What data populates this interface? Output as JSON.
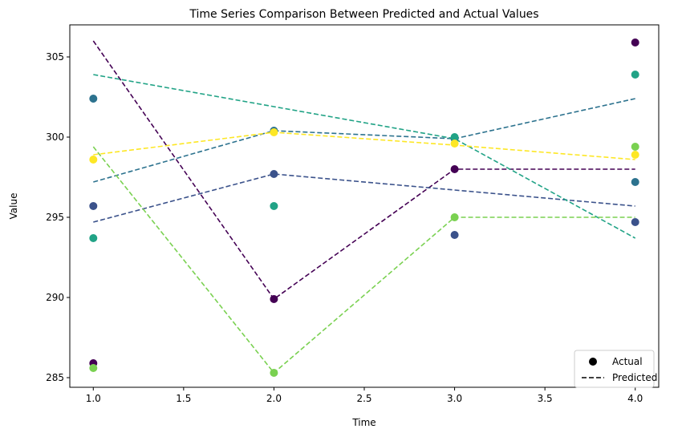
{
  "chart_data": {
    "type": "scatter",
    "title": "Time Series Comparison Between Predicted and Actual Values",
    "xlabel": "Time",
    "ylabel": "Value",
    "xlim": [
      0.87,
      4.13
    ],
    "ylim": [
      284.4,
      307.0
    ],
    "x_ticks": [
      1.0,
      1.5,
      2.0,
      2.5,
      3.0,
      3.5,
      4.0
    ],
    "x_tick_labels": [
      "1.0",
      "1.5",
      "2.0",
      "2.5",
      "3.0",
      "3.5",
      "4.0"
    ],
    "y_ticks": [
      285,
      290,
      295,
      300,
      305
    ],
    "y_tick_labels": [
      "285",
      "290",
      "295",
      "300",
      "305"
    ],
    "grid": false,
    "legend": {
      "placement": "bottom-right",
      "entries": [
        {
          "label": "Actual",
          "marker": "point",
          "color": "#000000"
        },
        {
          "label": "Predicted",
          "marker": "dashed-line",
          "color": "#000000"
        }
      ]
    },
    "x": [
      1.0,
      2.0,
      3.0,
      4.0
    ],
    "series": [
      {
        "color": "#440154",
        "actual": [
          285.9,
          289.9,
          298.0,
          305.9
        ],
        "predicted": [
          306.0,
          289.9,
          298.0,
          298.0
        ]
      },
      {
        "color": "#3b528b",
        "actual": [
          295.7,
          297.7,
          293.9,
          294.7
        ],
        "predicted": [
          294.7,
          297.7,
          296.7,
          295.7
        ]
      },
      {
        "color": "#2c728e",
        "actual": [
          302.4,
          300.4,
          299.9,
          297.2
        ],
        "predicted": [
          297.2,
          300.4,
          299.9,
          302.4
        ]
      },
      {
        "color": "#21a386",
        "actual": [
          293.7,
          295.7,
          300.0,
          303.9
        ],
        "predicted": [
          303.9,
          301.9,
          299.9,
          293.7
        ]
      },
      {
        "color": "#7ad151",
        "actual": [
          285.6,
          285.3,
          295.0,
          299.4
        ],
        "predicted": [
          299.4,
          285.3,
          295.0,
          295.0
        ]
      },
      {
        "color": "#fde725",
        "actual": [
          298.6,
          300.3,
          299.6,
          298.9
        ],
        "predicted": [
          298.9,
          300.3,
          299.5,
          298.6
        ]
      }
    ]
  }
}
